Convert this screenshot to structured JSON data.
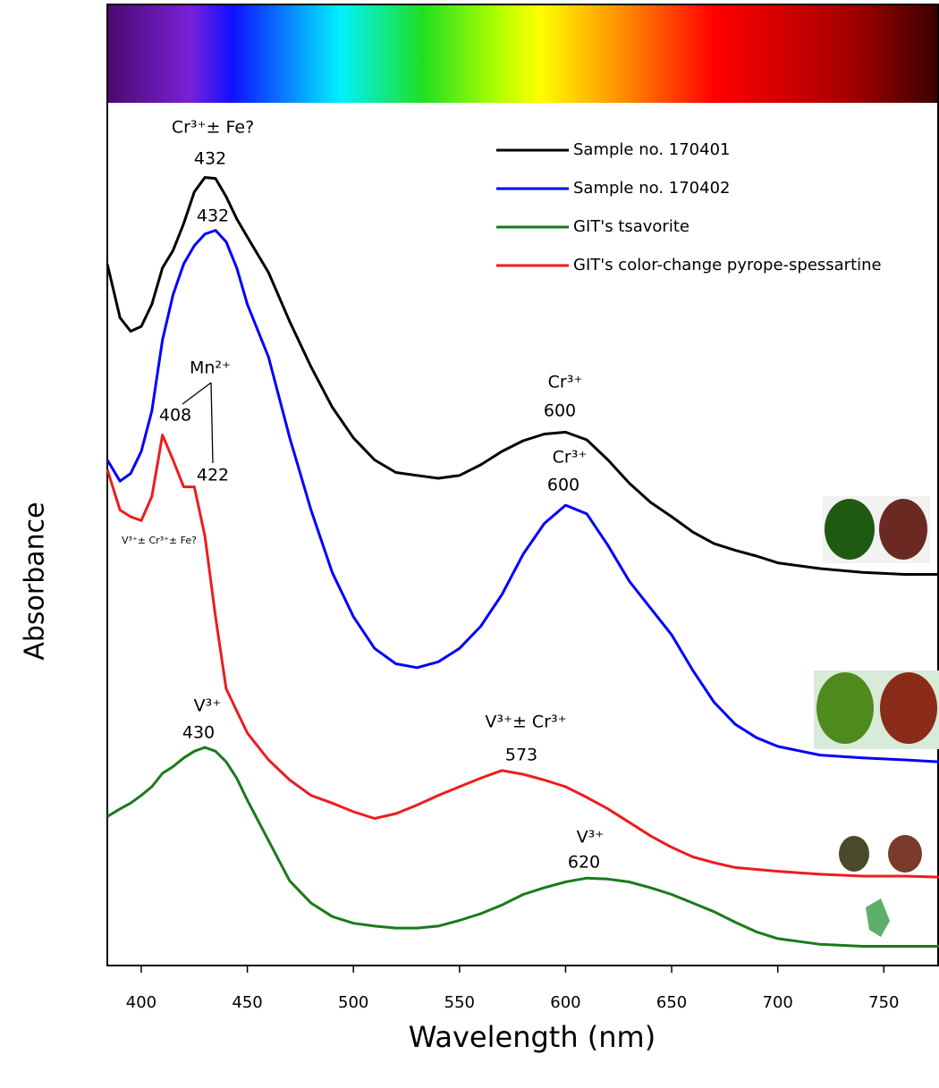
{
  "chart_data": {
    "type": "line",
    "x_label": "Wavelength (nm)",
    "y_label": "Absorbance",
    "x": [
      384,
      390,
      395,
      400,
      405,
      410,
      415,
      420,
      425,
      430,
      435,
      440,
      445,
      450,
      460,
      470,
      480,
      490,
      500,
      510,
      520,
      530,
      540,
      550,
      560,
      570,
      580,
      590,
      600,
      610,
      620,
      630,
      640,
      650,
      660,
      670,
      680,
      690,
      700,
      720,
      740,
      760,
      776
    ],
    "xlim": [
      384,
      776
    ],
    "xticks": [
      400,
      450,
      500,
      550,
      600,
      650,
      700,
      750
    ],
    "ylim": [
      0,
      100
    ],
    "legend": "upper right",
    "series": [
      {
        "name": "Sample no. 170401",
        "color": "#000000",
        "values": [
          73.0,
          67.4,
          66.0,
          66.5,
          68.8,
          72.6,
          74.4,
          77.2,
          80.5,
          82.0,
          81.9,
          80.0,
          77.7,
          75.8,
          72.1,
          67.0,
          62.3,
          58.1,
          54.9,
          52.6,
          51.3,
          51.0,
          50.7,
          51.0,
          52.1,
          53.5,
          54.6,
          55.3,
          55.5,
          54.7,
          52.6,
          50.2,
          48.2,
          46.7,
          45.1,
          43.9,
          43.2,
          42.6,
          41.9,
          41.3,
          40.9,
          40.7,
          40.7
        ]
      },
      {
        "name": "Sample no. 170402",
        "color": "#0000ff",
        "values": [
          52.6,
          50.4,
          51.2,
          53.5,
          57.7,
          65.1,
          69.8,
          73.0,
          74.9,
          76.1,
          76.5,
          75.3,
          72.6,
          68.8,
          63.3,
          54.9,
          47.4,
          40.9,
          36.3,
          33.0,
          31.4,
          31.0,
          31.6,
          33.0,
          35.3,
          38.6,
          42.8,
          46.0,
          47.9,
          47.0,
          43.7,
          40.0,
          37.2,
          34.4,
          30.7,
          27.4,
          25.1,
          23.7,
          22.8,
          21.9,
          21.6,
          21.4,
          21.2
        ]
      },
      {
        "name": "GIT's tsavorite",
        "color": "#1a7a1a",
        "values": [
          15.5,
          16.3,
          16.9,
          17.7,
          18.6,
          20.0,
          20.7,
          21.6,
          22.3,
          22.7,
          22.3,
          21.2,
          19.5,
          17.2,
          13.0,
          8.8,
          6.5,
          5.1,
          4.4,
          4.1,
          3.9,
          3.9,
          4.1,
          4.7,
          5.4,
          6.3,
          7.4,
          8.1,
          8.7,
          9.1,
          9.0,
          8.7,
          8.1,
          7.4,
          6.5,
          5.6,
          4.5,
          3.5,
          2.8,
          2.2,
          2.0,
          2.0,
          2.0
        ]
      },
      {
        "name": "GIT's color-change pyrope-spessartine",
        "color": "#ee1c1c",
        "values": [
          51.6,
          47.4,
          46.7,
          46.3,
          48.8,
          55.2,
          52.6,
          49.8,
          49.8,
          44.7,
          36.3,
          28.8,
          26.5,
          24.2,
          21.4,
          19.3,
          17.7,
          16.9,
          16.0,
          15.3,
          15.8,
          16.7,
          17.7,
          18.6,
          19.5,
          20.3,
          19.9,
          19.3,
          18.6,
          17.5,
          16.3,
          14.9,
          13.5,
          12.3,
          11.3,
          10.7,
          10.2,
          10.0,
          9.8,
          9.5,
          9.3,
          9.3,
          9.2
        ]
      }
    ],
    "annotations": [
      "Cr³⁺± Fe?",
      432,
      432,
      "Mn²⁺",
      408,
      422,
      "Cr³⁺",
      600,
      "Cr³⁺",
      600,
      "V³⁺± Cr³⁺± Fe?",
      "V³⁺",
      430,
      "V³⁺± Cr³⁺",
      573,
      "V³⁺",
      620
    ]
  }
}
